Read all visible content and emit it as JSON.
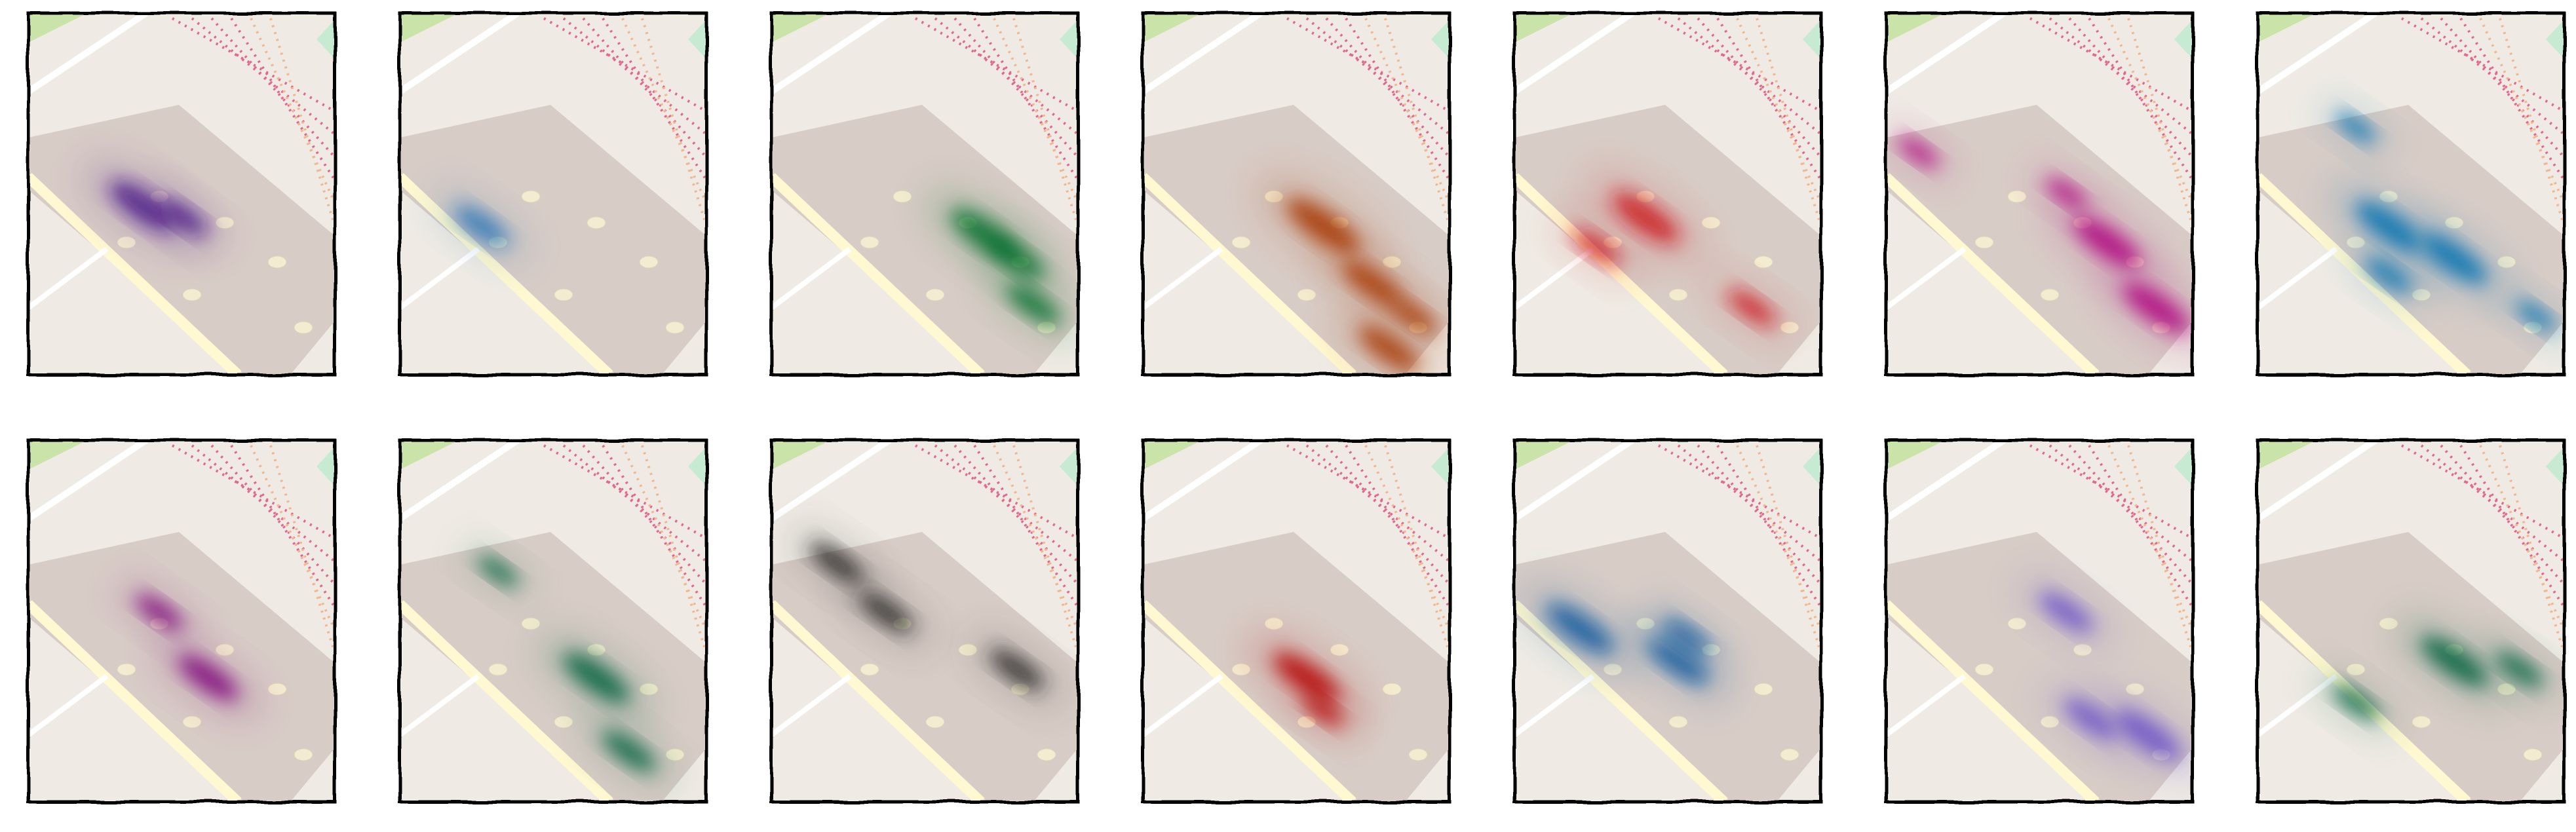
{
  "panels": [
    {
      "color": "#4a1486"
    },
    {
      "color": "#2171b5"
    },
    {
      "color": "#006d2c"
    },
    {
      "color": "#a63603"
    },
    {
      "color": "#cb181d"
    },
    {
      "color": "#ae017e"
    },
    {
      "color": "#0570b0"
    },
    {
      "color": "#7a0177"
    },
    {
      "color": "#00613a"
    },
    {
      "color": "#252525"
    },
    {
      "color": "#b30000"
    },
    {
      "color": "#08589e"
    },
    {
      "color": "#6a51c8"
    },
    {
      "color": "#00603c"
    }
  ]
}
